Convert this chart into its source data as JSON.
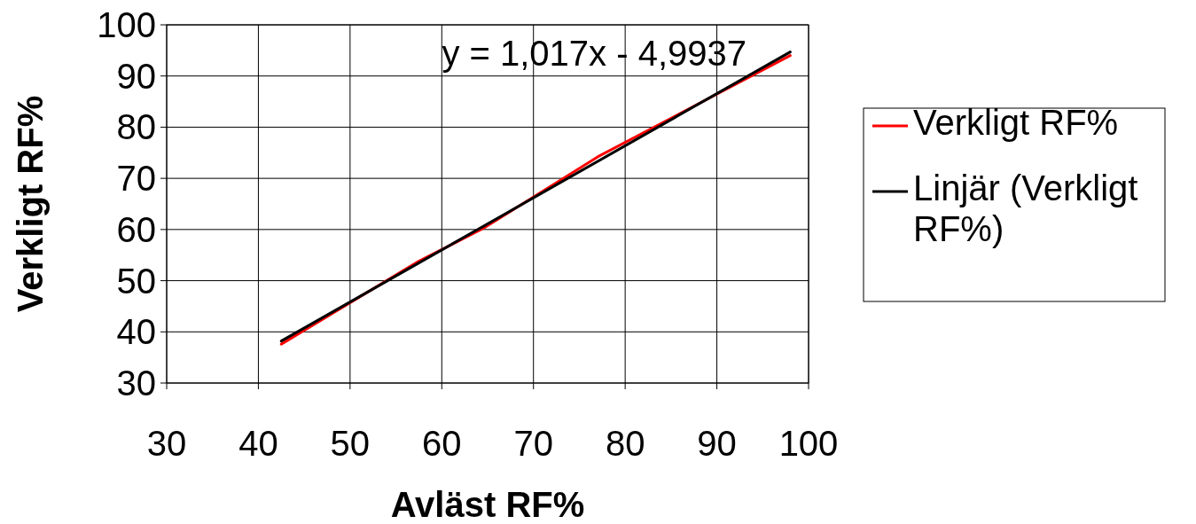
{
  "chart_data": {
    "type": "line",
    "xlabel": "Avläst RF%",
    "ylabel": "Verkligt RF%",
    "xlim": [
      30,
      100
    ],
    "xticks": [
      30,
      40,
      50,
      60,
      70,
      80,
      90,
      100
    ],
    "ylim": [
      30,
      100
    ],
    "yticks": [
      30,
      40,
      50,
      60,
      70,
      80,
      90,
      100
    ],
    "grid": true,
    "legend": "right",
    "marker": "none",
    "series": [
      {
        "name": "Verkligt RF%",
        "color": "#ff0000",
        "x": [
          42.5,
          57.5,
          64.5,
          77,
          98
        ],
        "values": [
          37.6,
          53.8,
          60.2,
          74.2,
          94.0
        ]
      },
      {
        "name": "Linjär (Verkligt RF%)",
        "color": "#000000",
        "x": [
          42.5,
          98
        ],
        "values": [
          38.2,
          94.7
        ]
      }
    ],
    "annotations": [
      "y = 1,017x - 4,9937"
    ]
  }
}
